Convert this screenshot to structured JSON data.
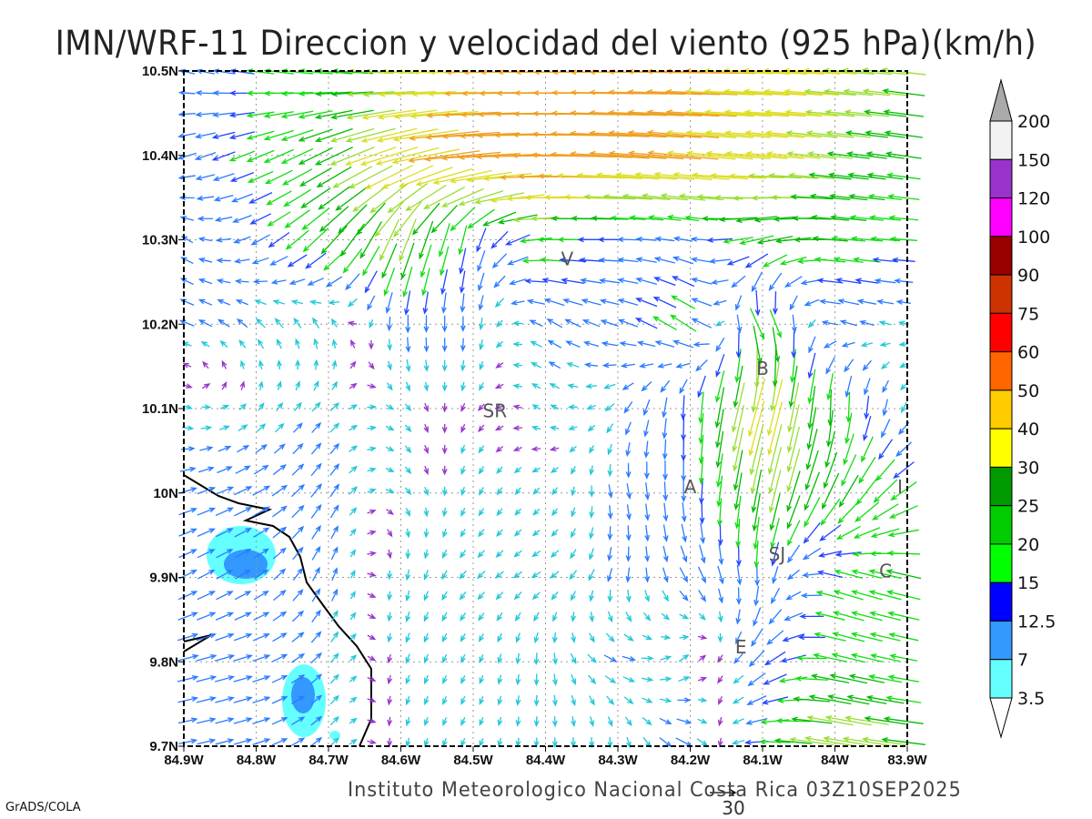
{
  "title": "IMN/WRF-11 Direccion y velocidad del viento (925 hPa)(km/h)",
  "footer": "Instituto Meteorologico Nacional Costa Rica 03Z10SEP2025",
  "credit": "GrADS/COLA",
  "reference_vector": {
    "label": "30",
    "speed": 30
  },
  "chart_data": {
    "type": "vector-field",
    "units": "km/h",
    "level": "925 hPa",
    "lon_range": [
      -84.9,
      -83.9
    ],
    "lat_range": [
      9.7,
      10.5
    ],
    "x_ticks": [
      "84.9W",
      "84.8W",
      "84.7W",
      "84.6W",
      "84.5W",
      "84.4W",
      "84.3W",
      "84.2W",
      "84.1W",
      "84W",
      "83.9W"
    ],
    "y_ticks": [
      "9.7N",
      "9.8N",
      "9.9N",
      "10N",
      "10.1N",
      "10.2N",
      "10.3N",
      "10.4N",
      "10.5N"
    ],
    "grid_lons": [
      -84.9,
      -84.8,
      -84.7,
      -84.6,
      -84.5,
      -84.4,
      -84.3,
      -84.2,
      -84.1,
      -84.0,
      -83.9
    ],
    "grid_lats": [
      9.7,
      9.8,
      9.9,
      10.0,
      10.1,
      10.2,
      10.3,
      10.4,
      10.5
    ],
    "u": [
      [
        10,
        10,
        5,
        -1,
        -2,
        0,
        0,
        10,
        -15,
        -30,
        -25
      ],
      [
        12,
        10,
        5,
        -2,
        -2,
        0,
        8,
        5,
        -10,
        -20,
        -15
      ],
      [
        10,
        8,
        3,
        -1,
        -4,
        -5,
        -2,
        5,
        0,
        -15,
        -20
      ],
      [
        10,
        10,
        5,
        3,
        -2,
        -3,
        2,
        0,
        -5,
        -10,
        -15
      ],
      [
        5,
        3,
        5,
        3,
        -2,
        -4,
        -5,
        0,
        -10,
        0,
        -3
      ],
      [
        -8,
        -5,
        -3,
        0,
        0,
        -8,
        -10,
        -15,
        10,
        -10,
        -5
      ],
      [
        -6,
        -10,
        -15,
        -10,
        -3,
        -20,
        -12,
        -10,
        -20,
        -20,
        -15
      ],
      [
        -10,
        -15,
        -20,
        -35,
        -45,
        -50,
        -45,
        -40,
        -35,
        -25,
        -20
      ],
      [
        -8,
        -15,
        -20,
        -30,
        -40,
        -45,
        -45,
        -42,
        -38,
        -30,
        -25
      ]
    ],
    "v": [
      [
        2,
        3,
        5,
        -4,
        -4,
        -5,
        -6,
        -5,
        0,
        5,
        3
      ],
      [
        3,
        3,
        6,
        -5,
        -4,
        -7,
        -3,
        5,
        -10,
        5,
        3
      ],
      [
        5,
        5,
        8,
        -6,
        -4,
        -3,
        -8,
        -8,
        -12,
        5,
        5
      ],
      [
        3,
        5,
        8,
        -3,
        -4,
        -3,
        -8,
        -12,
        -25,
        -20,
        -10
      ],
      [
        -2,
        4,
        5,
        -3,
        -3,
        3,
        -5,
        -15,
        -35,
        -20,
        -5
      ],
      [
        3,
        5,
        6,
        -10,
        -8,
        5,
        3,
        10,
        -20,
        3,
        1
      ],
      [
        4,
        -5,
        -15,
        -25,
        -15,
        0,
        0,
        2,
        -5,
        2,
        1
      ],
      [
        -3,
        -6,
        -10,
        -10,
        -3,
        0,
        3,
        4,
        3,
        3,
        3
      ],
      [
        2,
        2,
        2,
        1,
        0,
        0,
        0,
        1,
        2,
        2,
        3
      ]
    ],
    "colorbar": {
      "levels": [
        "200",
        "150",
        "120",
        "100",
        "90",
        "75",
        "60",
        "50",
        "40",
        "30",
        "25",
        "20",
        "15",
        "12.5",
        "7",
        "3.5"
      ],
      "colors": [
        "#f2f2f2",
        "#9933cc",
        "#ff00ff",
        "#990000",
        "#cc3300",
        "#ff0000",
        "#ff6600",
        "#ffcc00",
        "#ffff00",
        "#009900",
        "#00cc00",
        "#00ff00",
        "#0000ff",
        "#3399ff",
        "#66ffff"
      ],
      "above_color": "#aaaaaa",
      "below_color": "#ffffff"
    },
    "stations": [
      {
        "label": "V",
        "lon": -84.37,
        "lat": 10.27
      },
      {
        "label": "SR",
        "lon": -84.47,
        "lat": 10.09
      },
      {
        "label": "B",
        "lon": -84.1,
        "lat": 10.14
      },
      {
        "label": "A",
        "lon": -84.2,
        "lat": 10.0
      },
      {
        "label": "SJ",
        "lon": -84.08,
        "lat": 9.92
      },
      {
        "label": "C",
        "lon": -83.93,
        "lat": 9.9
      },
      {
        "label": "E",
        "lon": -84.13,
        "lat": 9.81
      },
      {
        "label": "I",
        "lon": -83.91,
        "lat": 10.0
      }
    ]
  }
}
